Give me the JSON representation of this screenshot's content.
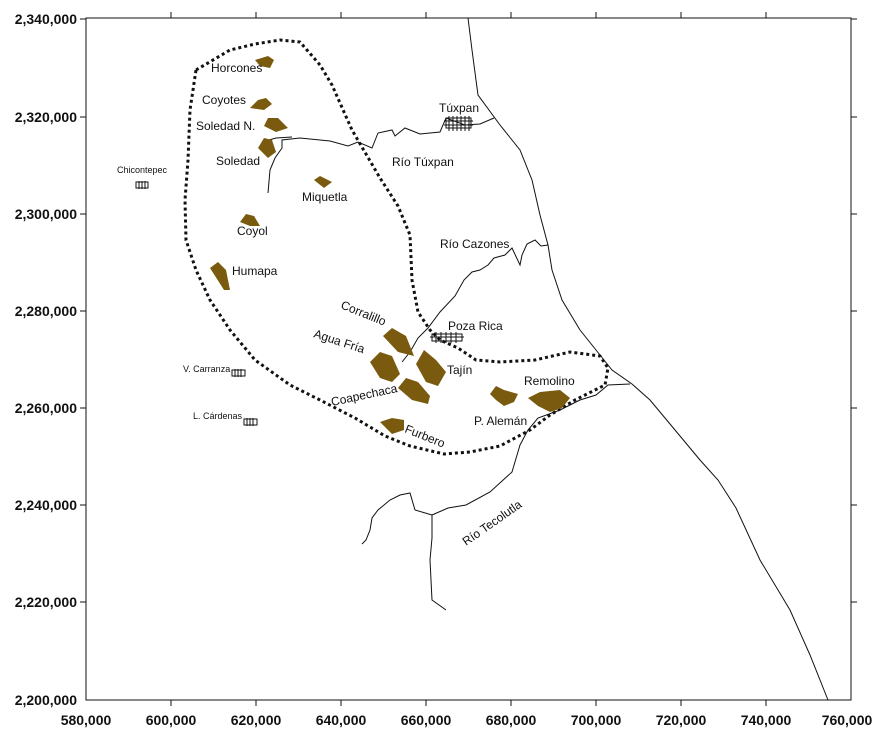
{
  "x_ticks": [
    "580,000",
    "600,000",
    "620,000",
    "640,000",
    "660,000",
    "680,000",
    "700,000",
    "720,000",
    "740,000",
    "760,000"
  ],
  "y_ticks": [
    "2,340,000",
    "2,320,000",
    "2,300,000",
    "2,280,000",
    "2,260,000",
    "2,240,000",
    "2,220,000",
    "2,200,000"
  ],
  "fields": {
    "horcones": "Horcones",
    "coyotes": "Coyotes",
    "soledad_n": "Soledad N.",
    "soledad": "Soledad",
    "miquetla": "Miquetla",
    "coyol": "Coyol",
    "humapa": "Humapa",
    "corralillo": "Corralillo",
    "agua_fria": "Agua Fría",
    "coapechaca": "Coapechaca",
    "tajin": "Tajín",
    "furbero": "Furbero",
    "remolino": "Remolino",
    "p_aleman": "P. Alemán"
  },
  "towns": {
    "tuxpan": "Túxpan",
    "poza_rica": "Poza Rica",
    "chicontepec": "Chicontepec",
    "v_carranza": "V. Carranza",
    "l_cardenas": "L. Cárdenas"
  },
  "rivers": {
    "tuxpan": "Río Túxpan",
    "cazones": "Río Cazones",
    "tecolutla": "Río Tecolutla"
  },
  "colors": {
    "field_fill": "#7a5a0e",
    "line": "#111111"
  }
}
